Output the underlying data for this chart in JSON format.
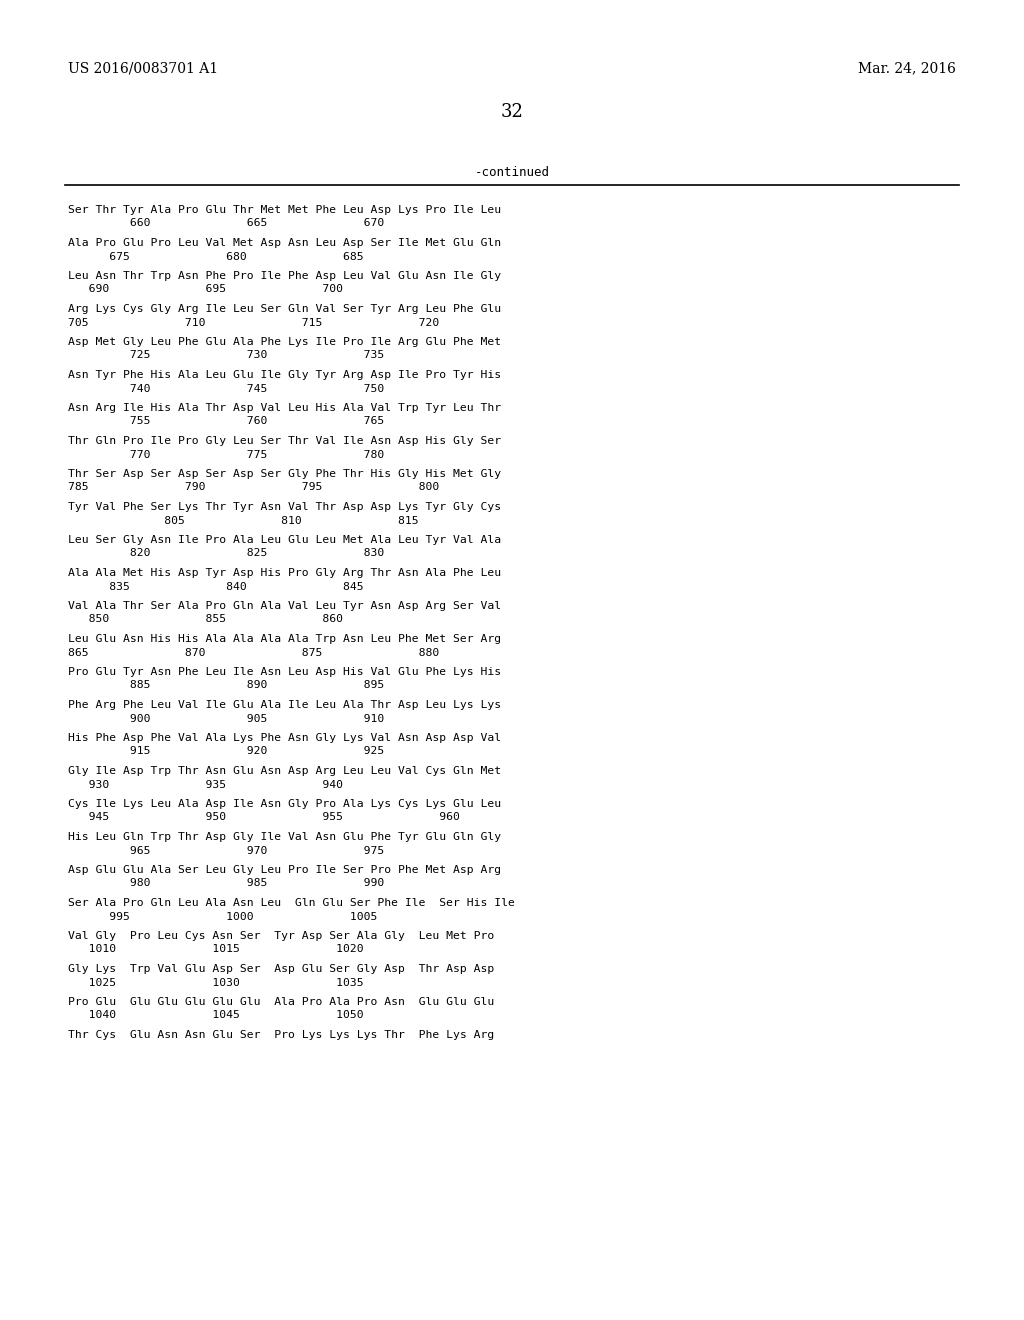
{
  "header_left": "US 2016/0083701 A1",
  "header_right": "Mar. 24, 2016",
  "page_number": "32",
  "continued_label": "-continued",
  "background_color": "#ffffff",
  "text_color": "#000000",
  "sequence_pairs": [
    [
      "Ser Thr Tyr Ala Pro Glu Thr Met Met Phe Leu Asp Lys Pro Ile Leu",
      "         660              665              670"
    ],
    [
      "Ala Pro Glu Pro Leu Val Met Asp Asn Leu Asp Ser Ile Met Glu Gln",
      "      675              680              685"
    ],
    [
      "Leu Asn Thr Trp Asn Phe Pro Ile Phe Asp Leu Val Glu Asn Ile Gly",
      "   690              695              700"
    ],
    [
      "Arg Lys Cys Gly Arg Ile Leu Ser Gln Val Ser Tyr Arg Leu Phe Glu",
      "705              710              715              720"
    ],
    [
      "Asp Met Gly Leu Phe Glu Ala Phe Lys Ile Pro Ile Arg Glu Phe Met",
      "         725              730              735"
    ],
    [
      "Asn Tyr Phe His Ala Leu Glu Ile Gly Tyr Arg Asp Ile Pro Tyr His",
      "         740              745              750"
    ],
    [
      "Asn Arg Ile His Ala Thr Asp Val Leu His Ala Val Trp Tyr Leu Thr",
      "         755              760              765"
    ],
    [
      "Thr Gln Pro Ile Pro Gly Leu Ser Thr Val Ile Asn Asp His Gly Ser",
      "         770              775              780"
    ],
    [
      "Thr Ser Asp Ser Asp Ser Asp Ser Gly Phe Thr His Gly His Met Gly",
      "785              790              795              800"
    ],
    [
      "Tyr Val Phe Ser Lys Thr Tyr Asn Val Thr Asp Asp Lys Tyr Gly Cys",
      "              805              810              815"
    ],
    [
      "Leu Ser Gly Asn Ile Pro Ala Leu Glu Leu Met Ala Leu Tyr Val Ala",
      "         820              825              830"
    ],
    [
      "Ala Ala Met His Asp Tyr Asp His Pro Gly Arg Thr Asn Ala Phe Leu",
      "      835              840              845"
    ],
    [
      "Val Ala Thr Ser Ala Pro Gln Ala Val Leu Tyr Asn Asp Arg Ser Val",
      "   850              855              860"
    ],
    [
      "Leu Glu Asn His His Ala Ala Ala Ala Trp Asn Leu Phe Met Ser Arg",
      "865              870              875              880"
    ],
    [
      "Pro Glu Tyr Asn Phe Leu Ile Asn Leu Asp His Val Glu Phe Lys His",
      "         885              890              895"
    ],
    [
      "Phe Arg Phe Leu Val Ile Glu Ala Ile Leu Ala Thr Asp Leu Lys Lys",
      "         900              905              910"
    ],
    [
      "His Phe Asp Phe Val Ala Lys Phe Asn Gly Lys Val Asn Asp Asp Val",
      "         915              920              925"
    ],
    [
      "Gly Ile Asp Trp Thr Asn Glu Asn Asp Arg Leu Leu Val Cys Gln Met",
      "   930              935              940"
    ],
    [
      "Cys Ile Lys Leu Ala Asp Ile Asn Gly Pro Ala Lys Cys Lys Glu Leu",
      "   945              950              955              960"
    ],
    [
      "His Leu Gln Trp Thr Asp Gly Ile Val Asn Glu Phe Tyr Glu Gln Gly",
      "         965              970              975"
    ],
    [
      "Asp Glu Glu Ala Ser Leu Gly Leu Pro Ile Ser Pro Phe Met Asp Arg",
      "         980              985              990"
    ],
    [
      "Ser Ala Pro Gln Leu Ala Asn Leu  Gln Glu Ser Phe Ile  Ser His Ile",
      "      995              1000              1005"
    ],
    [
      "Val Gly  Pro Leu Cys Asn Ser  Tyr Asp Ser Ala Gly  Leu Met Pro",
      "   1010              1015              1020"
    ],
    [
      "Gly Lys  Trp Val Glu Asp Ser  Asp Glu Ser Gly Asp  Thr Asp Asp",
      "   1025              1030              1035"
    ],
    [
      "Pro Glu  Glu Glu Glu Glu Glu  Ala Pro Ala Pro Asn  Glu Glu Glu",
      "   1040              1045              1050"
    ],
    [
      "Thr Cys  Glu Asn Asn Glu Ser  Pro Lys Lys Lys Thr  Phe Lys Arg",
      ""
    ]
  ]
}
